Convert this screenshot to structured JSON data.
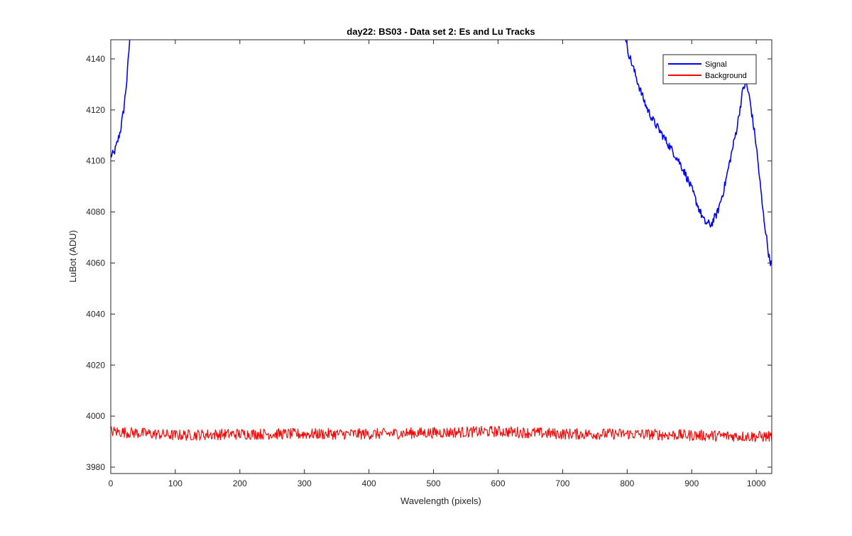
{
  "chart_data": {
    "type": "line",
    "title": "day22: BS03 - Data set 2: Es and Lu Tracks",
    "xlabel": "Wavelength (pixels)",
    "ylabel": "LuBot (ADU)",
    "xlim": [
      0,
      1024
    ],
    "ylim": [
      3977.5,
      4147.5
    ],
    "xticks": [
      0,
      100,
      200,
      300,
      400,
      500,
      600,
      700,
      800,
      900,
      1000
    ],
    "yticks": [
      3980,
      4000,
      4020,
      4040,
      4060,
      4080,
      4100,
      4120,
      4140
    ],
    "grid": false,
    "legend_location": "top-right",
    "series": [
      {
        "name": "Signal",
        "color": "#0000ff",
        "noise_amplitude": 1.6,
        "points": [
          [
            0,
            4102
          ],
          [
            5,
            4103
          ],
          [
            10,
            4107
          ],
          [
            15,
            4112
          ],
          [
            20,
            4120
          ],
          [
            25,
            4132
          ],
          [
            30,
            4150
          ],
          [
            35,
            4175
          ],
          [
            790,
            4175
          ],
          [
            795,
            4154
          ],
          [
            800,
            4144
          ],
          [
            810,
            4136
          ],
          [
            820,
            4128
          ],
          [
            830,
            4121
          ],
          [
            840,
            4116
          ],
          [
            850,
            4112
          ],
          [
            860,
            4108
          ],
          [
            870,
            4104
          ],
          [
            880,
            4100
          ],
          [
            890,
            4095
          ],
          [
            900,
            4089
          ],
          [
            910,
            4082
          ],
          [
            920,
            4076
          ],
          [
            930,
            4075
          ],
          [
            940,
            4080
          ],
          [
            950,
            4089
          ],
          [
            960,
            4101
          ],
          [
            970,
            4113
          ],
          [
            980,
            4129
          ],
          [
            985,
            4130
          ],
          [
            990,
            4124
          ],
          [
            1000,
            4106
          ],
          [
            1010,
            4081
          ],
          [
            1020,
            4062
          ],
          [
            1024,
            4059
          ]
        ]
      },
      {
        "name": "Background",
        "color": "#ff0000",
        "noise_amplitude": 2.2,
        "points": [
          [
            0,
            3994
          ],
          [
            100,
            3992.5
          ],
          [
            200,
            3993
          ],
          [
            300,
            3993
          ],
          [
            400,
            3993
          ],
          [
            500,
            3993.5
          ],
          [
            600,
            3994
          ],
          [
            700,
            3993
          ],
          [
            800,
            3993
          ],
          [
            900,
            3992.5
          ],
          [
            1000,
            3992
          ],
          [
            1024,
            3992
          ]
        ]
      }
    ]
  }
}
